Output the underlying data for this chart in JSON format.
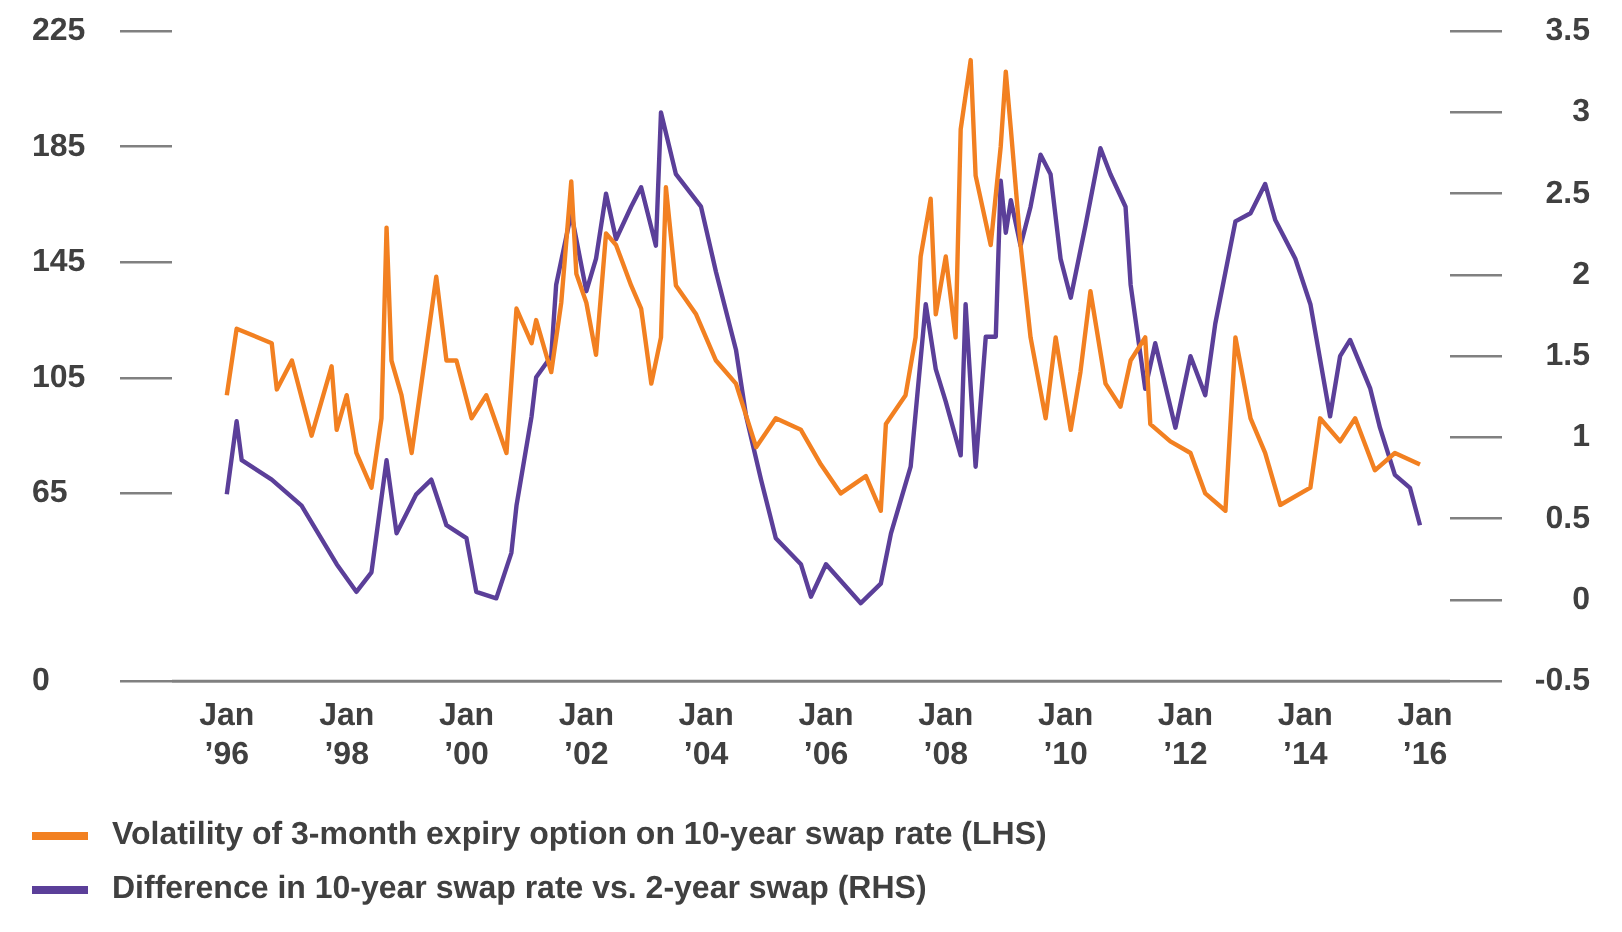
{
  "chart_data": {
    "type": "line",
    "legend": "bottom",
    "grid": false,
    "marker": "none",
    "line_style": "solid",
    "xlim": [
      "1995-02",
      "2016-06"
    ],
    "xticks": [
      {
        "value": "1996-01",
        "label": "Jan\n’96"
      },
      {
        "value": "1998-01",
        "label": "Jan\n’98"
      },
      {
        "value": "2000-01",
        "label": "Jan\n’00"
      },
      {
        "value": "2002-01",
        "label": "Jan\n’02"
      },
      {
        "value": "2004-01",
        "label": "Jan\n’04"
      },
      {
        "value": "2006-01",
        "label": "Jan\n’06"
      },
      {
        "value": "2008-01",
        "label": "Jan\n’08"
      },
      {
        "value": "2010-01",
        "label": "Jan\n’10"
      },
      {
        "value": "2012-01",
        "label": "Jan\n’12"
      },
      {
        "value": "2014-01",
        "label": "Jan\n’14"
      },
      {
        "value": "2016-01",
        "label": "Jan\n’16"
      }
    ],
    "ylim": [
      0,
      225
    ],
    "yticks": [
      0,
      65,
      105,
      145,
      185,
      225
    ],
    "y2lim": [
      -0.5,
      3.5
    ],
    "y2ticks": [
      -0.5,
      0,
      0.5,
      1.0,
      1.5,
      2.0,
      2.5,
      3.0,
      3.5
    ],
    "series": [
      {
        "name": "Volatility of 3-month expiry option on 10-year swap rate (LHS)",
        "color": "#f28021",
        "axis": "y",
        "x": [
          "1996-01",
          "1996-03",
          "1996-10",
          "1996-11",
          "1997-02",
          "1997-06",
          "1997-10",
          "1997-11",
          "1998-01",
          "1998-03",
          "1998-06",
          "1998-08",
          "1998-09",
          "1998-10",
          "1998-12",
          "1999-02",
          "1999-05",
          "1999-07",
          "1999-09",
          "1999-11",
          "2000-02",
          "2000-05",
          "2000-09",
          "2000-11",
          "2001-02",
          "2001-03",
          "2001-06",
          "2001-08",
          "2001-10",
          "2001-11",
          "2002-01",
          "2002-03",
          "2002-05",
          "2002-07",
          "2002-10",
          "2002-12",
          "2003-02",
          "2003-04",
          "2003-05",
          "2003-07",
          "2003-11",
          "2004-03",
          "2004-07",
          "2004-11",
          "2005-03",
          "2005-08",
          "2005-12",
          "2006-04",
          "2006-09",
          "2006-12",
          "2007-01",
          "2007-05",
          "2007-07",
          "2007-08",
          "2007-10",
          "2007-11",
          "2008-01",
          "2008-03",
          "2008-04",
          "2008-06",
          "2008-07",
          "2008-10",
          "2008-12",
          "2009-01",
          "2009-02",
          "2009-04",
          "2009-06",
          "2009-09",
          "2009-11",
          "2010-02",
          "2010-04",
          "2010-06",
          "2010-09",
          "2010-12",
          "2011-02",
          "2011-05",
          "2011-06",
          "2011-10",
          "2012-02",
          "2012-05",
          "2012-09",
          "2012-11",
          "2013-02",
          "2013-05",
          "2013-08",
          "2014-02",
          "2014-04",
          "2014-08",
          "2014-11",
          "2015-03",
          "2015-07",
          "2015-12"
        ],
        "values": [
          99,
          122,
          117,
          101,
          111,
          85,
          109,
          87,
          99,
          79,
          67,
          91,
          157,
          111,
          99,
          79,
          115,
          140,
          111,
          111,
          91,
          99,
          79,
          129,
          117,
          125,
          107,
          131,
          173,
          141,
          131,
          113,
          155,
          151,
          137,
          129,
          103,
          119,
          171,
          137,
          127,
          111,
          103,
          81,
          91,
          87,
          75,
          65,
          71,
          59,
          89,
          99,
          119,
          147,
          167,
          127,
          147,
          119,
          191,
          215,
          175,
          151,
          185,
          211,
          191,
          151,
          119,
          91,
          119,
          87,
          107,
          135,
          103,
          95,
          111,
          119,
          89,
          83,
          79,
          65,
          59,
          119,
          91,
          79,
          61,
          67,
          91,
          83,
          91,
          73,
          79,
          75
        ]
      },
      {
        "name": "Difference in 10-year swap rate vs. 2-year swap (RHS)",
        "color": "#5b3f99",
        "axis": "y2",
        "x": [
          "1996-01",
          "1996-03",
          "1996-04",
          "1996-10",
          "1997-04",
          "1997-11",
          "1998-03",
          "1998-06",
          "1998-09",
          "1998-11",
          "1999-03",
          "1999-06",
          "1999-09",
          "2000-01",
          "2000-03",
          "2000-07",
          "2000-10",
          "2000-11",
          "2001-02",
          "2001-03",
          "2001-06",
          "2001-07",
          "2001-10",
          "2002-01",
          "2002-03",
          "2002-05",
          "2002-07",
          "2002-10",
          "2002-12",
          "2003-03",
          "2003-04",
          "2003-07",
          "2003-12",
          "2004-03",
          "2004-07",
          "2004-09",
          "2004-12",
          "2005-03",
          "2005-08",
          "2005-10",
          "2006-01",
          "2006-08",
          "2006-12",
          "2007-02",
          "2007-06",
          "2007-09",
          "2007-11",
          "2008-01",
          "2008-04",
          "2008-05",
          "2008-07",
          "2008-09",
          "2008-11",
          "2008-12",
          "2009-01",
          "2009-02",
          "2009-04",
          "2009-06",
          "2009-08",
          "2009-10",
          "2009-12",
          "2010-02",
          "2010-05",
          "2010-08",
          "2010-10",
          "2011-01",
          "2011-02",
          "2011-05",
          "2011-07",
          "2011-11",
          "2012-02",
          "2012-05",
          "2012-07",
          "2012-11",
          "2013-02",
          "2013-05",
          "2013-07",
          "2013-11",
          "2014-02",
          "2014-06",
          "2014-08",
          "2014-10",
          "2015-02",
          "2015-04",
          "2015-07",
          "2015-10",
          "2015-12"
        ],
        "values": [
          0.65,
          1.1,
          0.86,
          0.74,
          0.58,
          0.22,
          0.05,
          0.17,
          0.86,
          0.41,
          0.65,
          0.74,
          0.46,
          0.38,
          0.05,
          0.01,
          0.29,
          0.58,
          1.13,
          1.37,
          1.5,
          1.94,
          2.38,
          1.9,
          2.1,
          2.5,
          2.22,
          2.42,
          2.54,
          2.18,
          3.0,
          2.62,
          2.42,
          2.02,
          1.54,
          1.13,
          0.74,
          0.38,
          0.22,
          0.02,
          0.22,
          -0.02,
          0.1,
          0.41,
          0.82,
          1.82,
          1.42,
          1.22,
          0.89,
          1.82,
          0.82,
          1.62,
          1.62,
          2.58,
          2.26,
          2.46,
          2.18,
          2.42,
          2.74,
          2.62,
          2.1,
          1.86,
          2.3,
          2.78,
          2.62,
          2.42,
          1.94,
          1.3,
          1.58,
          1.06,
          1.5,
          1.26,
          1.7,
          2.33,
          2.38,
          2.56,
          2.34,
          2.1,
          1.82,
          1.13,
          1.5,
          1.6,
          1.3,
          1.06,
          0.77,
          0.69,
          0.46
        ]
      }
    ]
  }
}
